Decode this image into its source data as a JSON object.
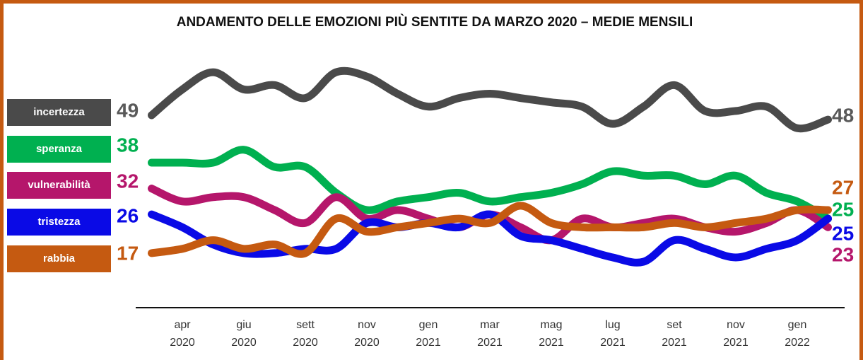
{
  "chart_data": {
    "type": "line",
    "title": "ANDAMENTO DELLE EMOZIONI PIÙ SENTITE DA MARZO 2020 – MEDIE MENSILI",
    "categories": [
      null,
      "apr 2020",
      null,
      "giu 2020",
      null,
      "sett 2020",
      null,
      "nov 2020",
      null,
      "gen 2021",
      null,
      "mar 2021",
      null,
      "mag 2021",
      null,
      "lug 2021",
      null,
      "set 2021",
      null,
      "nov 2021",
      null,
      "gen 2022",
      null
    ],
    "ylim": [
      5,
      60
    ],
    "series": [
      {
        "name": "incertezza",
        "color": "#4a4a4a",
        "label_color": "#595959",
        "values": [
          49,
          55,
          59,
          55,
          56,
          53,
          59,
          58,
          54,
          51,
          53,
          54,
          53,
          52,
          51,
          47,
          51,
          56,
          50,
          50,
          51,
          46,
          48
        ]
      },
      {
        "name": "speranza",
        "color": "#00b050",
        "label_color": "#00b050",
        "values": [
          38,
          38,
          38,
          41,
          37,
          37,
          31,
          27,
          29,
          30,
          31,
          29,
          30,
          31,
          33,
          36,
          35,
          35,
          33,
          35,
          31,
          29,
          25
        ]
      },
      {
        "name": "vulnerabilità",
        "color": "#b5166b",
        "label_color": "#b5166b",
        "values": [
          32,
          29,
          30,
          30,
          27,
          24,
          30,
          25,
          27,
          25,
          23,
          26,
          23,
          20,
          25,
          23,
          24,
          25,
          23,
          22,
          24,
          27,
          23
        ]
      },
      {
        "name": "tristezza",
        "color": "#0a0ae6",
        "label_color": "#0a0ae6",
        "values": [
          26,
          23,
          19,
          17,
          17,
          18,
          18,
          24,
          23,
          24,
          23,
          26,
          21,
          20,
          18,
          16,
          15,
          20,
          18,
          16,
          18,
          20,
          25
        ]
      },
      {
        "name": "rabbia",
        "color": "#c55a11",
        "label_color": "#c55a11",
        "values": [
          17,
          18,
          20,
          18,
          19,
          17,
          25,
          22,
          23,
          24,
          25,
          24,
          28,
          24,
          23,
          23,
          23,
          24,
          23,
          24,
          25,
          27,
          27
        ]
      }
    ]
  }
}
